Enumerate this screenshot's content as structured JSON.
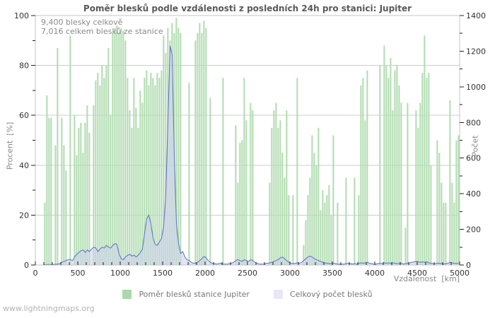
{
  "title": "Poměr blesků podle vzdálenosti z posledních 24h pro stanici: Jupiter",
  "annotation": {
    "line1": "9,400 blesky celkově",
    "line2": "7,016 celkem blesků ze stanice"
  },
  "watermark": "www.lightningmaps.org",
  "legend": {
    "items": [
      {
        "label": "Poměr blesků stanice Jupiter",
        "swatch": "#a9d8a9"
      },
      {
        "label": "Celkový počet blesků",
        "swatch": "#e7e7f8"
      }
    ]
  },
  "chart_data": {
    "type": "bar+line",
    "title": "Poměr blesků podle vzdálenosti z posledních 24h pro stanici: Jupiter",
    "xlabel": "Vzdálenost  [km]",
    "ylabel_left": "Procent  [%]",
    "ylabel_right": "Počet",
    "xlim": [
      0,
      5000
    ],
    "ylim_left": [
      0,
      100
    ],
    "ylim_right": [
      0,
      1400
    ],
    "xticks_major": [
      0,
      500,
      1000,
      1500,
      2000,
      2500,
      3000,
      3500,
      4000,
      4500,
      5000
    ],
    "xtick_minor_step": 100,
    "yticks_left": [
      0,
      20,
      40,
      60,
      80,
      100
    ],
    "ytick_left_minor_step": 10,
    "yticks_right": [
      0,
      200,
      400,
      600,
      800,
      1000,
      1200,
      1400
    ],
    "ytick_right_minor_step": 100,
    "grid": "horizontal",
    "legend_position": "bottom-center",
    "bar_color": "#b3ddb3",
    "line_color": "#5b6fc4",
    "line_fill": "rgba(206,206,238,0.55)",
    "grid_color": "#cccccc",
    "border_color": "#c4c4c4",
    "tick_color": "#222222",
    "tick_label_color": "#333333",
    "bin_width_km": 25,
    "x_start_km": 0,
    "bars_percent": [
      0,
      0,
      0,
      0,
      25,
      68,
      59,
      59,
      0,
      48,
      87,
      0,
      59,
      48,
      38,
      0,
      92,
      0,
      60,
      44,
      55,
      57,
      45,
      57,
      64,
      53,
      0,
      64,
      74,
      77,
      72,
      80,
      75,
      80,
      87,
      60,
      93,
      95,
      96,
      93,
      95,
      94,
      90,
      75,
      62,
      55,
      75,
      63,
      55,
      70,
      65,
      75,
      78,
      72,
      77,
      75,
      72,
      77,
      75,
      78,
      92,
      85,
      95,
      90,
      97,
      93,
      99,
      95,
      93,
      0,
      0,
      0,
      73,
      0,
      0,
      90,
      93,
      97,
      93,
      98,
      95,
      0,
      67,
      0,
      0,
      0,
      0,
      0,
      75,
      0,
      0,
      0,
      0,
      0,
      56,
      33,
      49,
      50,
      75,
      58,
      0,
      65,
      62,
      0,
      0,
      0,
      0,
      0,
      0,
      0,
      33,
      55,
      62,
      65,
      55,
      58,
      45,
      35,
      62,
      28,
      0,
      28,
      0,
      75,
      0,
      0,
      8,
      18,
      28,
      35,
      52,
      45,
      40,
      55,
      22,
      30,
      25,
      28,
      32,
      20,
      52,
      0,
      25,
      0,
      0,
      0,
      35,
      0,
      0,
      0,
      35,
      0,
      28,
      72,
      75,
      58,
      78,
      0,
      0,
      0,
      0,
      0,
      80,
      0,
      88,
      80,
      75,
      83,
      62,
      78,
      80,
      72,
      65,
      0,
      15,
      65,
      0,
      0,
      0,
      62,
      55,
      65,
      77,
      92,
      75,
      77,
      40,
      0,
      0,
      50,
      45,
      33,
      25,
      25,
      0,
      66,
      33,
      25,
      50,
      52
    ],
    "line_count": [
      0,
      0,
      0,
      0,
      2,
      3,
      3,
      3,
      3,
      4,
      5,
      8,
      15,
      20,
      25,
      30,
      30,
      25,
      45,
      60,
      70,
      80,
      85,
      70,
      85,
      75,
      90,
      100,
      95,
      75,
      90,
      100,
      95,
      110,
      100,
      95,
      110,
      120,
      115,
      60,
      35,
      30,
      45,
      55,
      60,
      50,
      55,
      45,
      55,
      70,
      90,
      180,
      260,
      280,
      230,
      150,
      115,
      110,
      130,
      150,
      220,
      400,
      800,
      1230,
      1180,
      600,
      230,
      120,
      65,
      75,
      45,
      30,
      25,
      15,
      10,
      10,
      15,
      25,
      35,
      48,
      40,
      25,
      15,
      10,
      8,
      5,
      8,
      10,
      5,
      5,
      5,
      8,
      10,
      15,
      25,
      30,
      25,
      20,
      30,
      25,
      20,
      30,
      25,
      15,
      10,
      5,
      5,
      5,
      8,
      10,
      12,
      15,
      20,
      25,
      30,
      40,
      45,
      35,
      25,
      15,
      10,
      8,
      10,
      12,
      10,
      15,
      25,
      35,
      45,
      50,
      45,
      35,
      30,
      25,
      20,
      15,
      12,
      10,
      8,
      8,
      10,
      8,
      5,
      5,
      5,
      5,
      8,
      10,
      8,
      5,
      8,
      5,
      10,
      12,
      10,
      12,
      15,
      10,
      8,
      5,
      5,
      8,
      10,
      8,
      12,
      10,
      12,
      10,
      12,
      10,
      8,
      8,
      10,
      5,
      8,
      10,
      12,
      15,
      18,
      20,
      18,
      15,
      18,
      15,
      18,
      12,
      10,
      8,
      8,
      10,
      10,
      8,
      5,
      8,
      10,
      15,
      12,
      10,
      8,
      10
    ]
  }
}
